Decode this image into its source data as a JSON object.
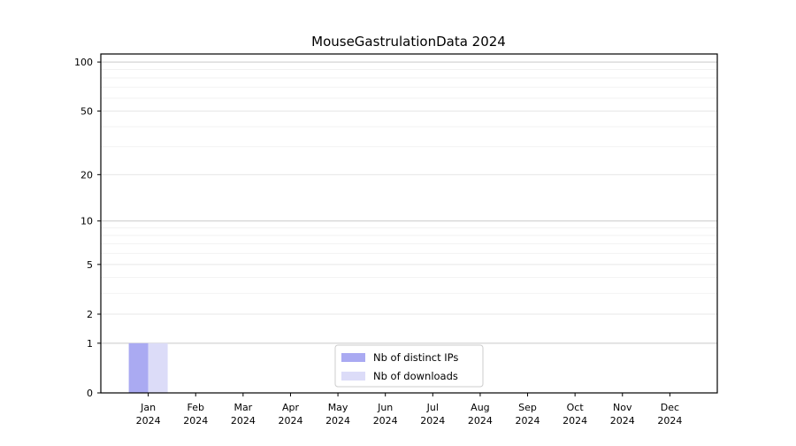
{
  "chart_data": {
    "type": "bar",
    "title": "MouseGastrulationData 2024",
    "categories": [
      "Jan",
      "Feb",
      "Mar",
      "Apr",
      "May",
      "Jun",
      "Jul",
      "Aug",
      "Sep",
      "Oct",
      "Nov",
      "Dec"
    ],
    "year_label": "2024",
    "series": [
      {
        "name": "Nb of distinct IPs",
        "color": "#aaaaf2",
        "values": [
          1,
          0,
          0,
          0,
          0,
          0,
          0,
          0,
          0,
          0,
          0,
          0
        ]
      },
      {
        "name": "Nb of downloads",
        "color": "#dcdcf8",
        "values": [
          1,
          0,
          0,
          0,
          0,
          0,
          0,
          0,
          0,
          0,
          0,
          0
        ]
      }
    ],
    "yscale": "log1p",
    "ylim": [
      0,
      112
    ],
    "yticks": {
      "values": [
        0,
        1,
        2,
        5,
        10,
        20,
        50,
        100
      ],
      "labels": [
        "0",
        "1",
        "2",
        "5",
        "10",
        "20",
        "50",
        "100"
      ]
    },
    "gridlines": {
      "major": [
        1,
        10,
        100
      ],
      "mid": [
        2,
        5,
        20,
        50
      ],
      "minor": [
        3,
        4,
        6,
        7,
        8,
        9,
        30,
        40,
        60,
        70,
        80,
        90
      ]
    },
    "legend": {
      "position": "lower-center",
      "entries": [
        "Nb of distinct IPs",
        "Nb of downloads"
      ]
    },
    "colors": {
      "bar_distinct_ips": "#aaaaf2",
      "bar_downloads": "#dcdcf8",
      "grid_major": "#c9c9c9",
      "grid_mid": "#e7e7e7",
      "grid_minor": "#f2f2f2",
      "axis": "#000000",
      "text": "#000000",
      "legend_border": "#cccccc",
      "background": "#ffffff"
    }
  }
}
